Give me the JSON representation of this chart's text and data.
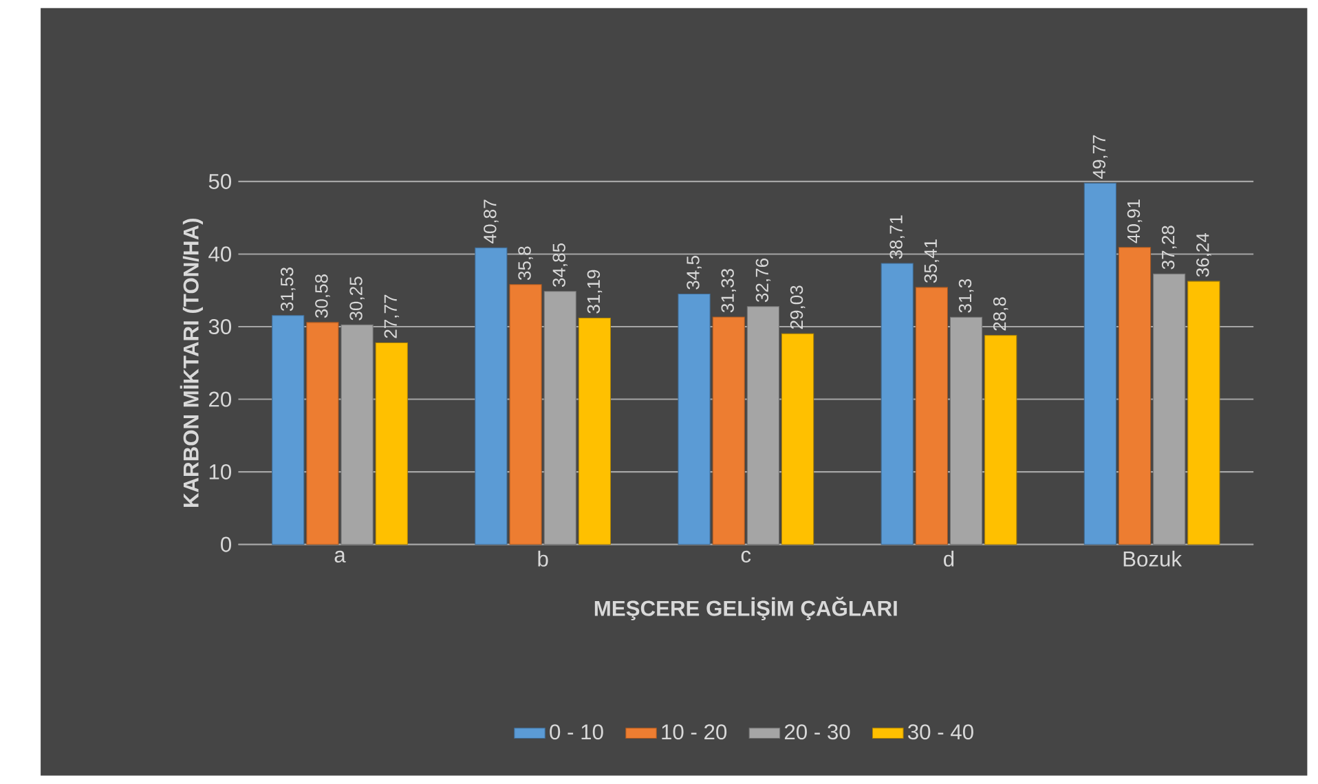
{
  "chart_data": {
    "type": "bar",
    "xlabel": "MEŞCERE GELİŞİM ÇAĞLARI",
    "ylabel": "KARBON MİKTARI (TON/HA)",
    "categories": [
      "a",
      "b",
      "c",
      "d",
      "Bozuk"
    ],
    "series": [
      {
        "name": "0 - 10",
        "color": "#5b9bd5",
        "values": [
          31.53,
          40.87,
          34.5,
          38.71,
          49.77
        ],
        "value_labels": [
          "31,53",
          "40,87",
          "34,5",
          "38,71",
          "49,77"
        ]
      },
      {
        "name": "10 - 20",
        "color": "#ed7d31",
        "values": [
          30.58,
          35.8,
          31.33,
          35.41,
          40.91
        ],
        "value_labels": [
          "30,58",
          "35,8",
          "31,33",
          "35,41",
          "40,91"
        ]
      },
      {
        "name": "20 - 30",
        "color": "#a5a5a5",
        "values": [
          30.25,
          34.85,
          32.76,
          31.3,
          37.28
        ],
        "value_labels": [
          "30,25",
          "34,85",
          "32,76",
          "31,3",
          "37,28"
        ]
      },
      {
        "name": "30 - 40",
        "color": "#ffc000",
        "values": [
          27.77,
          31.19,
          29.03,
          28.8,
          36.24
        ],
        "value_labels": [
          "27,77",
          "31,19",
          "29,03",
          "28,8",
          "36,24"
        ]
      }
    ],
    "ylim": [
      0,
      50
    ],
    "yticks": [
      0,
      10,
      20,
      30,
      40,
      50
    ],
    "grid": "y",
    "legend": "bottom"
  }
}
